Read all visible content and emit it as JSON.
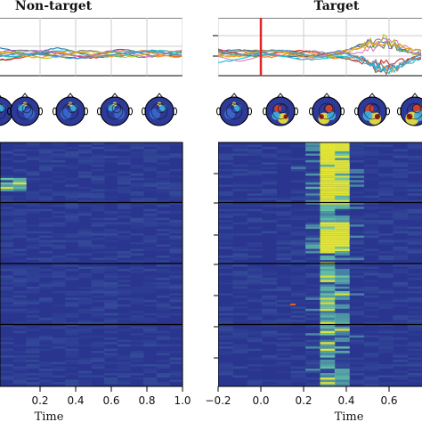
{
  "chart_data": [
    {
      "panel": "non-target",
      "type": "heatmap",
      "title": "Non-target",
      "xlabel": "Time",
      "x_ticks": [
        "0.2",
        "0.4",
        "0.6",
        "0.8",
        "1.0"
      ],
      "x_tick_values": [
        0.2,
        0.4,
        0.6,
        0.8,
        1.0
      ],
      "xlim": [
        0.0,
        1.0
      ],
      "erp_lines": 12,
      "topomaps": 6,
      "trial_blocks": 4,
      "activation": "low, uniform"
    },
    {
      "panel": "target",
      "type": "heatmap",
      "title": "Target",
      "xlabel": "Time",
      "x_ticks": [
        "−0.2",
        "0.0",
        "0.2",
        "0.4",
        "0.6"
      ],
      "x_tick_values": [
        -0.2,
        0.0,
        0.2,
        0.4,
        0.6
      ],
      "xlim": [
        -0.2,
        0.8
      ],
      "stimulus_onset": 0.0,
      "erp_lines": 12,
      "topomaps": 5,
      "trial_blocks": 4,
      "activation": "strong response near 0.3",
      "peak_time": 0.3
    }
  ],
  "colors": {
    "heat_low": "#2a3590",
    "heat_high": "#e4e838",
    "onset_line": "#e0282a",
    "grid": "#cccccc"
  }
}
